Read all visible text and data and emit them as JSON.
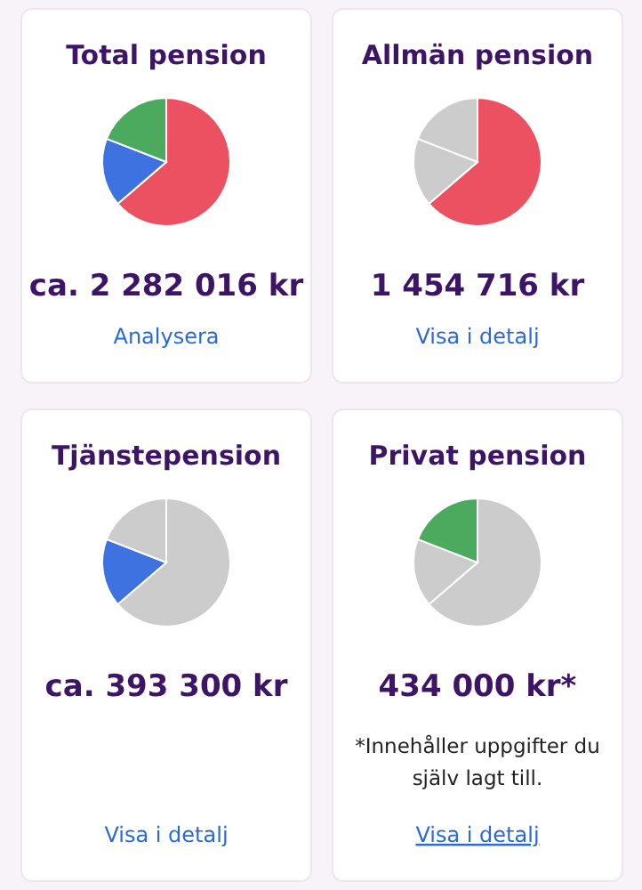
{
  "chart_data": [
    {
      "type": "pie",
      "title": "Total pension",
      "categories": [
        null,
        null,
        null
      ],
      "values": [
        63.7,
        17.2,
        19.1
      ],
      "colors": [
        "#ec5161",
        "#3d72e0",
        "#4caa5e"
      ],
      "annotations": [
        "ca. 2 282 016 kr",
        "Analysera"
      ]
    },
    {
      "type": "pie",
      "title": "Allmän pension",
      "categories": [
        null,
        null,
        null
      ],
      "values": [
        63.7,
        17.2,
        19.1
      ],
      "colors": [
        "#ec5161",
        "#cccccc",
        "#cccccc"
      ],
      "annotations": [
        "1 454 716 kr",
        "Visa i detalj"
      ]
    },
    {
      "type": "pie",
      "title": "Tjänstepension",
      "categories": [
        null,
        null,
        null
      ],
      "values": [
        63.7,
        17.2,
        19.1
      ],
      "colors": [
        "#cccccc",
        "#3d72e0",
        "#cccccc"
      ],
      "annotations": [
        "ca. 393 300 kr",
        "Visa i detalj"
      ]
    },
    {
      "type": "pie",
      "title": "Privat pension",
      "categories": [
        null,
        null,
        null
      ],
      "values": [
        63.7,
        17.2,
        19.1
      ],
      "colors": [
        "#cccccc",
        "#cccccc",
        "#4caa5e"
      ],
      "annotations": [
        "434 000 kr*",
        "*Innehåller uppgifter du själv lagt till.",
        "Visa i detalj"
      ]
    }
  ]
}
